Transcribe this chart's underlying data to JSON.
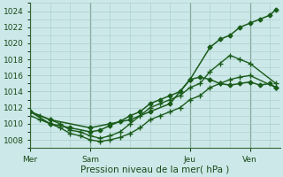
{
  "bg_color": "#cce8e8",
  "grid_color": "#aacccc",
  "line_color": "#1a5c1a",
  "xlabel": "Pression niveau de la mer( hPa )",
  "ylim": [
    1007,
    1025
  ],
  "yticks": [
    1008,
    1010,
    1012,
    1014,
    1016,
    1018,
    1020,
    1022,
    1024
  ],
  "day_labels": [
    "Mer",
    "Sam",
    "Jeu",
    "Ven"
  ],
  "day_positions": [
    0,
    3,
    8,
    11
  ],
  "xlim": [
    0,
    12.5
  ],
  "series": [
    {
      "x": [
        0,
        1,
        3,
        4,
        5,
        6,
        7,
        8,
        9,
        9.5,
        10,
        10.5,
        11,
        11.5,
        12,
        12.3
      ],
      "y": [
        1011.5,
        1010.5,
        1009.5,
        1010.0,
        1010.5,
        1011.5,
        1012.5,
        1015.5,
        1019.5,
        1020.5,
        1021.0,
        1022.0,
        1022.5,
        1023.0,
        1023.5,
        1024.2
      ],
      "marker": "D",
      "markersize": 2.5,
      "linewidth": 1.1
    },
    {
      "x": [
        0,
        1,
        2,
        3,
        3.5,
        4,
        4.5,
        5,
        5.5,
        6,
        6.5,
        7,
        7.5,
        8,
        8.5,
        9,
        9.5,
        10,
        10.5,
        11,
        11.5,
        12,
        12.3
      ],
      "y": [
        1011.5,
        1010.0,
        1009.5,
        1009.0,
        1009.2,
        1009.8,
        1010.3,
        1011.0,
        1011.5,
        1012.5,
        1013.0,
        1013.5,
        1014.0,
        1015.5,
        1015.8,
        1015.5,
        1015.0,
        1014.8,
        1015.0,
        1015.2,
        1014.8,
        1015.0,
        1014.5
      ],
      "marker": "D",
      "markersize": 2.5,
      "linewidth": 1.1
    },
    {
      "x": [
        0,
        0.5,
        1,
        1.5,
        2,
        2.5,
        3,
        3.5,
        4,
        4.5,
        5,
        5.5,
        6,
        6.5,
        7,
        7.5,
        8,
        8.5,
        9,
        9.5,
        10,
        10.5,
        11,
        12.3
      ],
      "y": [
        1011.0,
        1010.5,
        1010.0,
        1009.5,
        1008.8,
        1008.5,
        1008.0,
        1007.8,
        1008.0,
        1008.3,
        1008.8,
        1009.5,
        1010.5,
        1011.0,
        1011.5,
        1012.0,
        1013.0,
        1013.5,
        1014.5,
        1015.0,
        1015.5,
        1015.8,
        1016.0,
        1014.5
      ],
      "marker": "+",
      "markersize": 4,
      "linewidth": 1.0
    },
    {
      "x": [
        0,
        0.5,
        1,
        1.5,
        2,
        2.5,
        3,
        3.5,
        4,
        4.5,
        5,
        5.5,
        6,
        6.5,
        7,
        7.5,
        8,
        8.5,
        9,
        9.5,
        10,
        10.5,
        11,
        12.3
      ],
      "y": [
        1011.5,
        1011.0,
        1010.5,
        1010.0,
        1009.2,
        1009.0,
        1008.5,
        1008.2,
        1008.5,
        1009.0,
        1010.0,
        1011.0,
        1012.0,
        1012.5,
        1013.0,
        1013.5,
        1014.5,
        1015.0,
        1016.5,
        1017.5,
        1018.5,
        1018.0,
        1017.5,
        1015.0
      ],
      "marker": "+",
      "markersize": 4,
      "linewidth": 1.0
    }
  ]
}
